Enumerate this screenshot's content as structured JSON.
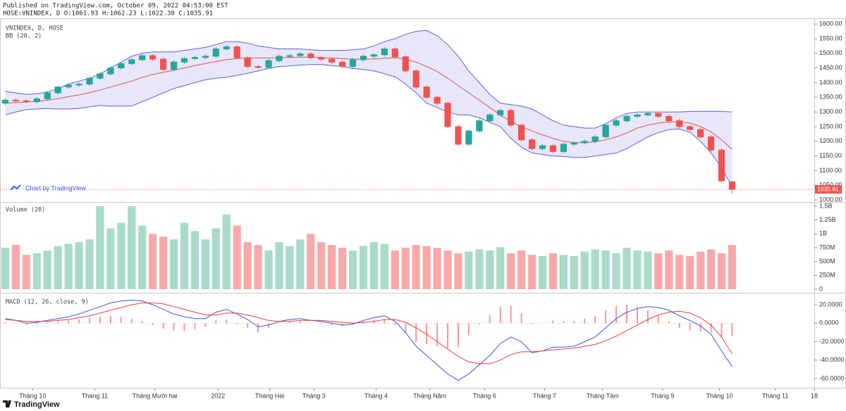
{
  "header": {
    "published": "Published on TradingView.com, October 09, 2022 04:53:00 EST",
    "symbol_line": "HOSE:VNINDEX, D O:1061.93 H:1062.23 L:1022.38 C:1035.91"
  },
  "watermark": "Chart by TradingView",
  "footer": {
    "brand": "TradingView"
  },
  "chart_data": [
    {
      "type": "candlestick",
      "title": "VNINDEX, D, HOSE",
      "up_color": "#26a69a",
      "down_color": "#ef5350",
      "open": [
        1330,
        1340,
        1338,
        1335,
        1345,
        1365,
        1385,
        1392,
        1395,
        1415,
        1430,
        1450,
        1465,
        1478,
        1492,
        1480,
        1445,
        1470,
        1482,
        1486,
        1490,
        1515,
        1522,
        1485,
        1455,
        1452,
        1475,
        1490,
        1492,
        1498,
        1485,
        1480,
        1470,
        1455,
        1478,
        1490,
        1495,
        1515,
        1488,
        1440,
        1385,
        1350,
        1330,
        1250,
        1190,
        1235,
        1270,
        1290,
        1305,
        1255,
        1205,
        1175,
        1185,
        1165,
        1190,
        1195,
        1200,
        1215,
        1255,
        1270,
        1285,
        1290,
        1295,
        1285,
        1270,
        1250,
        1240,
        1215,
        1170,
        1061.93
      ],
      "high": [
        1346,
        1346,
        1344,
        1351,
        1371,
        1391,
        1398,
        1401,
        1421,
        1436,
        1456,
        1471,
        1484,
        1498,
        1498,
        1486,
        1476,
        1488,
        1492,
        1496,
        1521,
        1528,
        1528,
        1491,
        1461,
        1481,
        1496,
        1498,
        1504,
        1504,
        1491,
        1486,
        1476,
        1484,
        1496,
        1501,
        1521,
        1521,
        1494,
        1446,
        1391,
        1356,
        1336,
        1256,
        1241,
        1276,
        1296,
        1311,
        1311,
        1261,
        1211,
        1191,
        1191,
        1196,
        1201,
        1206,
        1221,
        1261,
        1276,
        1291,
        1296,
        1301,
        1301,
        1291,
        1276,
        1256,
        1246,
        1221,
        1176,
        1062.23
      ],
      "low": [
        1324,
        1332,
        1329,
        1329,
        1339,
        1359,
        1379,
        1386,
        1389,
        1409,
        1424,
        1444,
        1459,
        1472,
        1474,
        1439,
        1439,
        1464,
        1476,
        1480,
        1484,
        1509,
        1479,
        1449,
        1446,
        1446,
        1469,
        1484,
        1486,
        1479,
        1474,
        1464,
        1449,
        1449,
        1472,
        1484,
        1489,
        1482,
        1434,
        1379,
        1344,
        1324,
        1244,
        1184,
        1184,
        1229,
        1264,
        1284,
        1249,
        1199,
        1169,
        1169,
        1159,
        1159,
        1184,
        1189,
        1194,
        1209,
        1249,
        1264,
        1279,
        1284,
        1279,
        1264,
        1244,
        1234,
        1209,
        1164,
        1059,
        1022.38
      ],
      "close": [
        1340,
        1338,
        1335,
        1345,
        1365,
        1385,
        1392,
        1395,
        1415,
        1430,
        1450,
        1465,
        1478,
        1492,
        1480,
        1445,
        1470,
        1482,
        1486,
        1490,
        1515,
        1522,
        1485,
        1455,
        1452,
        1475,
        1490,
        1492,
        1498,
        1485,
        1480,
        1470,
        1455,
        1478,
        1490,
        1495,
        1515,
        1488,
        1440,
        1385,
        1350,
        1330,
        1250,
        1190,
        1235,
        1270,
        1290,
        1305,
        1255,
        1205,
        1175,
        1185,
        1165,
        1190,
        1195,
        1200,
        1215,
        1255,
        1270,
        1285,
        1290,
        1295,
        1285,
        1270,
        1250,
        1240,
        1215,
        1170,
        1065,
        1035.91
      ],
      "bb": {
        "label": "BB (20, 2)",
        "band_color": "#5b62d6",
        "basis_color": "#e0504f",
        "fill": "#787bdc",
        "upper": [
          1370,
          1365,
          1360,
          1362,
          1368,
          1380,
          1395,
          1405,
          1415,
          1430,
          1450,
          1470,
          1490,
          1500,
          1505,
          1505,
          1505,
          1510,
          1515,
          1520,
          1530,
          1540,
          1540,
          1535,
          1525,
          1520,
          1515,
          1515,
          1515,
          1512,
          1510,
          1510,
          1510,
          1512,
          1515,
          1525,
          1540,
          1550,
          1565,
          1575,
          1578,
          1560,
          1530,
          1490,
          1440,
          1400,
          1360,
          1330,
          1325,
          1320,
          1310,
          1290,
          1270,
          1255,
          1250,
          1245,
          1245,
          1260,
          1280,
          1295,
          1300,
          1300,
          1300,
          1300,
          1300,
          1302,
          1302,
          1302,
          1302,
          1300
        ],
        "basis": [
          1330,
          1332,
          1334,
          1336,
          1340,
          1345,
          1352,
          1358,
          1366,
          1375,
          1385,
          1395,
          1405,
          1418,
          1428,
          1435,
          1442,
          1450,
          1458,
          1465,
          1472,
          1478,
          1482,
          1484,
          1484,
          1484,
          1485,
          1486,
          1487,
          1487,
          1486,
          1484,
          1482,
          1480,
          1480,
          1481,
          1483,
          1485,
          1480,
          1470,
          1455,
          1438,
          1415,
          1390,
          1365,
          1340,
          1315,
          1290,
          1268,
          1250,
          1235,
          1222,
          1210,
          1200,
          1195,
          1195,
          1198,
          1205,
          1215,
          1228,
          1245,
          1255,
          1262,
          1266,
          1266,
          1262,
          1250,
          1232,
          1205,
          1172
        ],
        "lower": [
          1290,
          1300,
          1308,
          1310,
          1312,
          1310,
          1310,
          1312,
          1318,
          1322,
          1320,
          1320,
          1320,
          1335,
          1350,
          1365,
          1380,
          1390,
          1400,
          1410,
          1415,
          1418,
          1425,
          1432,
          1440,
          1448,
          1455,
          1457,
          1460,
          1462,
          1462,
          1458,
          1455,
          1448,
          1445,
          1440,
          1430,
          1420,
          1395,
          1365,
          1330,
          1315,
          1300,
          1290,
          1290,
          1280,
          1265,
          1250,
          1210,
          1180,
          1160,
          1155,
          1150,
          1148,
          1145,
          1145,
          1150,
          1155,
          1160,
          1175,
          1195,
          1215,
          1230,
          1240,
          1242,
          1230,
          1200,
          1160,
          1110,
          1045
        ]
      },
      "xlim": [
        -0.5,
        76.8
      ],
      "xticks": [
        {
          "value": 2.6,
          "label": "Tháng 10"
        },
        {
          "value": 8.5,
          "label": "Tháng 11"
        },
        {
          "value": 14.2,
          "label": "Tháng Mười hai"
        },
        {
          "value": 20.2,
          "label": "2022"
        },
        {
          "value": 25.1,
          "label": "Tháng Hai"
        },
        {
          "value": 29.3,
          "label": "Tháng 3"
        },
        {
          "value": 35.2,
          "label": "Tháng 4"
        },
        {
          "value": 40.3,
          "label": "Tháng Năm"
        },
        {
          "value": 45.5,
          "label": "Tháng 6"
        },
        {
          "value": 51.2,
          "label": "Tháng 7"
        },
        {
          "value": 56.7,
          "label": "Tháng Tám"
        },
        {
          "value": 62.4,
          "label": "Tháng 9"
        },
        {
          "value": 67.8,
          "label": "Tháng 10"
        },
        {
          "value": 73.1,
          "label": "Tháng 11"
        },
        {
          "value": 76.8,
          "label": "18"
        }
      ],
      "ylim": [
        993,
        1617
      ],
      "yticks": [
        {
          "value": 1000,
          "label": "1000.00"
        },
        {
          "value": 1050,
          "label": "1050.00"
        },
        {
          "value": 1100,
          "label": "1100.00"
        },
        {
          "value": 1150,
          "label": "1150.00"
        },
        {
          "value": 1200,
          "label": "1200.00"
        },
        {
          "value": 1250,
          "label": "1250.00"
        },
        {
          "value": 1300,
          "label": "1300.00"
        },
        {
          "value": 1350,
          "label": "1350.00"
        },
        {
          "value": 1400,
          "label": "1400.00"
        },
        {
          "value": 1450,
          "label": "1450.00"
        },
        {
          "value": 1500,
          "label": "1500.00"
        },
        {
          "value": 1550,
          "label": "1550.00"
        },
        {
          "value": 1600,
          "label": "1600.00"
        }
      ]
    },
    {
      "type": "bar",
      "title": "Volume (20)",
      "up_color": "#a8dcc8",
      "down_color": "#f7a9aa",
      "values": [
        750,
        800,
        620,
        650,
        700,
        780,
        820,
        850,
        900,
        1500,
        1100,
        1200,
        1500,
        1150,
        1000,
        950,
        900,
        1200,
        1050,
        900,
        1100,
        1350,
        1150,
        850,
        800,
        700,
        850,
        780,
        900,
        1000,
        850,
        800,
        750,
        700,
        780,
        850,
        820,
        700,
        750,
        800,
        780,
        750,
        700,
        650,
        680,
        720,
        700,
        760,
        650,
        700,
        620,
        600,
        650,
        620,
        600,
        680,
        720,
        700,
        650,
        750,
        700,
        680,
        650,
        700,
        620,
        600,
        680,
        720,
        650,
        800
      ],
      "ylim": [
        -64,
        1551
      ],
      "yticks": [
        0,
        {
          "value": 250,
          "label": "250M"
        },
        {
          "value": 500,
          "label": "500M"
        },
        {
          "value": 750,
          "label": "750M"
        },
        {
          "value": 1000,
          "label": "1B"
        },
        {
          "value": 1250,
          "label": "1.25B"
        },
        {
          "value": 1500,
          "label": "1.5B"
        }
      ]
    },
    {
      "type": "line",
      "title": "MACD (12, 26, close, 9)",
      "histogram": {
        "color": "#ef5350",
        "values": [
          1,
          0,
          -2,
          -1,
          1,
          2,
          3,
          4,
          6,
          7,
          8,
          7,
          5,
          2,
          -2,
          -6,
          -8,
          -8,
          -7,
          -4,
          3,
          4,
          -1,
          -5,
          -10,
          -5,
          0,
          2,
          2,
          0,
          -1,
          -2,
          -3,
          -1,
          2,
          4,
          4,
          -2,
          -11,
          -20,
          -23,
          -25,
          -27,
          -26,
          -13,
          -1,
          9,
          18,
          19,
          11,
          -1,
          0,
          3,
          2,
          2,
          5,
          8,
          14,
          19,
          20,
          18,
          14,
          8,
          2,
          -5,
          -8,
          -9,
          -10,
          -15,
          -14
        ]
      },
      "series": [
        {
          "color": "#3f51e0",
          "values": [
            5,
            3,
            0,
            1,
            3,
            5,
            7,
            10,
            14,
            18,
            22,
            24,
            25,
            24,
            20,
            15,
            10,
            7,
            5,
            5,
            12,
            15,
            10,
            4,
            -4,
            -2,
            2,
            4,
            5,
            3,
            2,
            0,
            -2,
            -1,
            3,
            6,
            8,
            2,
            -10,
            -25,
            -35,
            -45,
            -55,
            -62,
            -55,
            -45,
            -35,
            -22,
            -15,
            -20,
            -32,
            -30,
            -26,
            -26,
            -25,
            -20,
            -15,
            -5,
            5,
            12,
            16,
            18,
            17,
            14,
            8,
            3,
            -3,
            -12,
            -30,
            -47
          ]
        },
        {
          "color": "#ef3b3b",
          "values": [
            4,
            3,
            2,
            2,
            2,
            3,
            4,
            6,
            8,
            11,
            14,
            17,
            20,
            22,
            22,
            21,
            18,
            15,
            12,
            9,
            9,
            11,
            11,
            9,
            6,
            3,
            2,
            2,
            3,
            3,
            3,
            2,
            1,
            0,
            1,
            2,
            4,
            4,
            1,
            -5,
            -12,
            -20,
            -28,
            -36,
            -42,
            -44,
            -44,
            -40,
            -34,
            -31,
            -31,
            -30,
            -29,
            -28,
            -27,
            -25,
            -23,
            -19,
            -14,
            -8,
            -2,
            4,
            9,
            12,
            13,
            11,
            6,
            -2,
            -15,
            -33
          ]
        }
      ],
      "ylim": [
        -70,
        31.5
      ],
      "yticks": [
        {
          "value": 20,
          "label": "20.0000"
        },
        {
          "value": 0,
          "label": "0.0000"
        },
        {
          "value": -20,
          "label": "-20.0000"
        },
        {
          "value": -40,
          "label": "-40.0000"
        },
        {
          "value": -60,
          "label": "-60.0000"
        }
      ]
    }
  ]
}
